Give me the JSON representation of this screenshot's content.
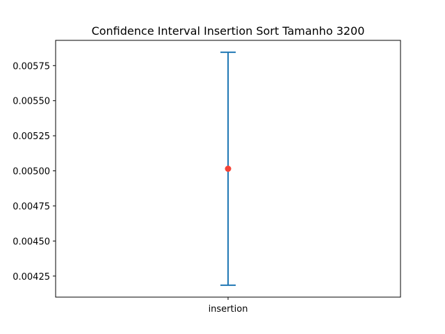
{
  "chart_data": {
    "type": "errorbar",
    "title": "Confidence Interval Insertion Sort Tamanho 3200",
    "xlabel": "",
    "ylabel": "",
    "categories": [
      "insertion"
    ],
    "series": [
      {
        "mean": 0.005015,
        "lower": 0.004185,
        "upper": 0.005845
      }
    ],
    "ylim": [
      0.0041,
      0.00593
    ],
    "yticks": [
      0.00425,
      0.0045,
      0.00475,
      0.005,
      0.00525,
      0.0055,
      0.00575
    ],
    "ytick_labels": [
      "0.00425",
      "0.00450",
      "0.00475",
      "0.00500",
      "0.00525",
      "0.00550",
      "0.00575"
    ],
    "grid": false,
    "legend": "none",
    "colors": {
      "errorbar": "#1f77b4",
      "mean_marker": "#f44336",
      "axes": "#000000",
      "background": "#ffffff"
    }
  }
}
